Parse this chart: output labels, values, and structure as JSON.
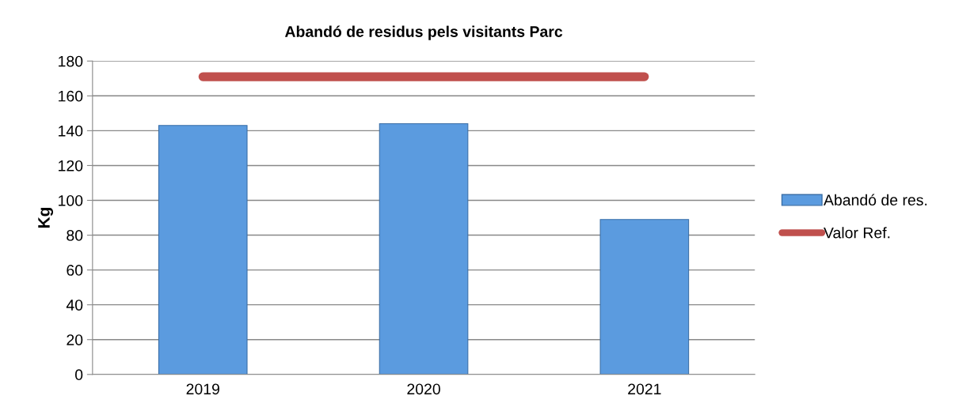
{
  "chart_data": {
    "type": "bar",
    "title": "Abandó de residus pels visitants Parc",
    "ylabel": "Kg",
    "categories": [
      "2019",
      "2020",
      "2021"
    ],
    "series": [
      {
        "name": "Abandó de res.",
        "color": "#5b9bdf",
        "values": [
          143,
          144,
          89
        ]
      },
      {
        "name": "Valor Ref.",
        "color": "#c0504d",
        "type": "line",
        "values": [
          171,
          171,
          171
        ]
      }
    ],
    "ylim": [
      0,
      180
    ],
    "yticks": [
      0,
      20,
      40,
      60,
      80,
      100,
      120,
      140,
      160,
      180
    ],
    "grid": "y",
    "legend": "right",
    "line_style": "solid"
  }
}
